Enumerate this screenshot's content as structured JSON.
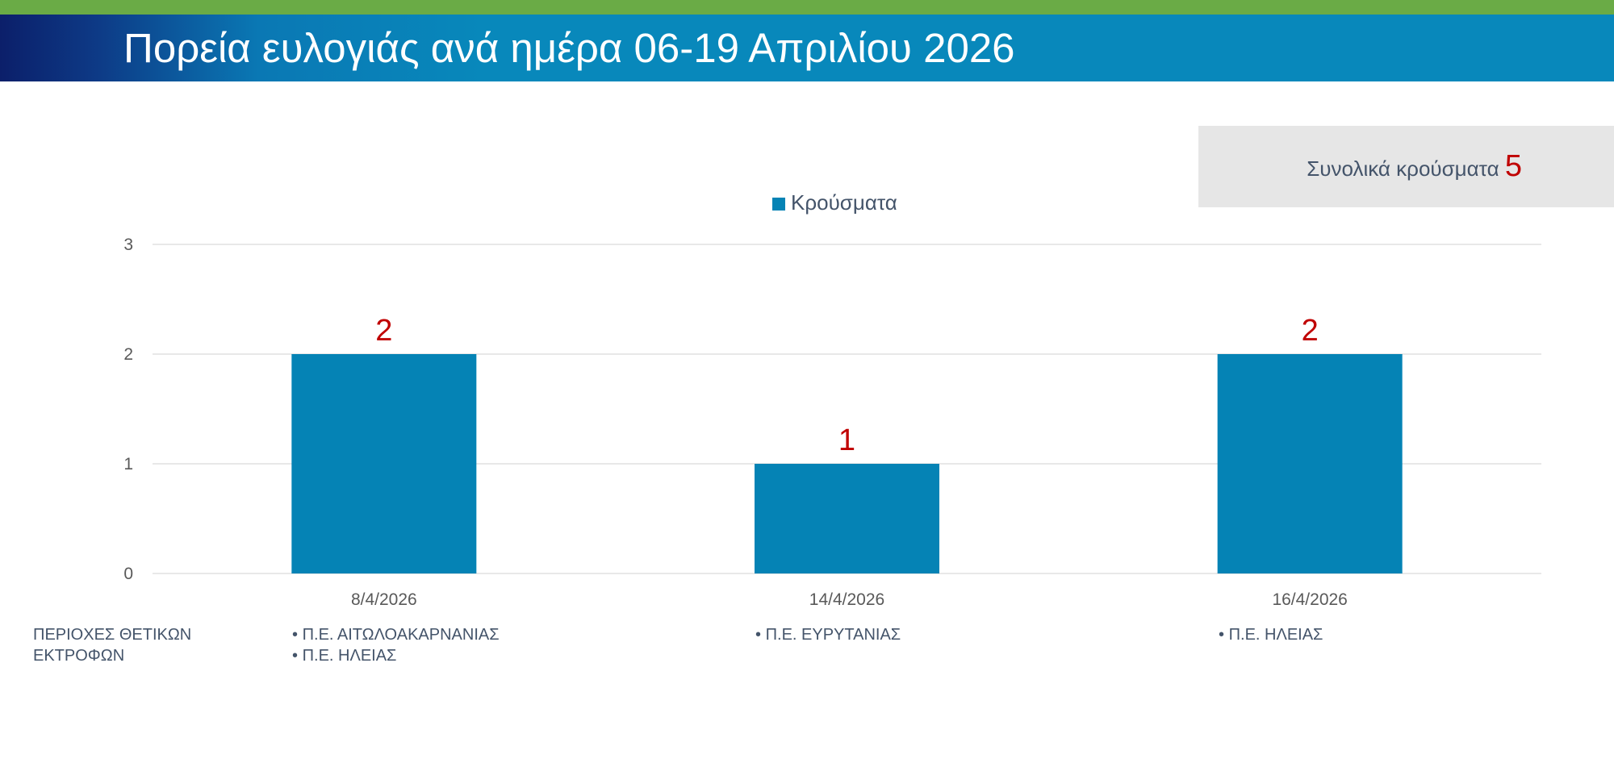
{
  "header": {
    "title": "Πορεία ευλογιάς ανά ημέρα 06-19 Απριλίου 2026"
  },
  "summary": {
    "total_label": "Συνολικά κρούσματα",
    "total_value": "5"
  },
  "colors": {
    "accent_green": "#6aab46",
    "bar_blue": "#0583b5",
    "label_red": "#c00000"
  },
  "chart_data": {
    "type": "bar",
    "categories": [
      "8/4/2026",
      "14/4/2026",
      "16/4/2026"
    ],
    "series": [
      {
        "name": "Κρούσματα",
        "values": [
          2,
          1,
          2
        ]
      }
    ],
    "title": "",
    "xlabel": "",
    "ylabel": "",
    "ylim": [
      0,
      3
    ],
    "yticks": [
      0,
      1,
      2,
      3
    ],
    "grid": true,
    "legend": "top-center",
    "data_labels": true
  },
  "regions": {
    "heading_line1": "ΠΕΡΙΟΧΕΣ ΘΕΤΙΚΩΝ",
    "heading_line2": "ΕΚΤΡΟΦΩΝ",
    "per_date": [
      {
        "items": [
          "Π.Ε. ΑΙΤΩΛΟΑΚΑΡΝΑΝΙΑΣ",
          "Π.Ε. ΗΛΕΙΑΣ"
        ]
      },
      {
        "items": [
          "Π.Ε. ΕΥΡΥΤΑΝΙΑΣ"
        ]
      },
      {
        "items": [
          "Π.Ε. ΗΛΕΙΑΣ"
        ]
      }
    ]
  }
}
